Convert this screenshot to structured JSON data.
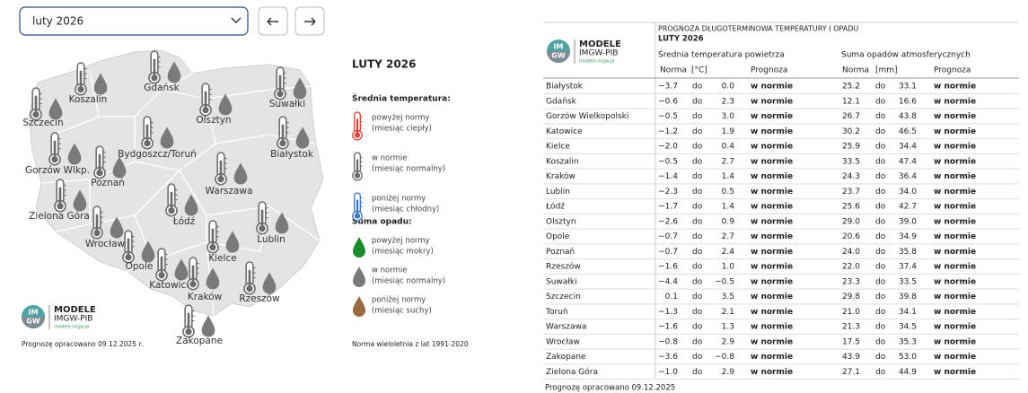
{
  "controls": {
    "month_select": "luty 2026"
  },
  "map": {
    "cities": [
      "Koszalin",
      "Gdańsk",
      "Suwałki",
      "Szczecin",
      "Olsztyn",
      "Bydgoszcz/Toruń",
      "Białystok",
      "Gorzów Wlkp.",
      "Poznań",
      "Warszawa",
      "Zielona Góra",
      "Łódź",
      "Lublin",
      "Wrocław",
      "Opole",
      "Kielce",
      "Katowice",
      "Kraków",
      "Rzeszów",
      "Zakopane"
    ],
    "logo": {
      "mark_top": "IM",
      "mark_bottom": "GW",
      "title": "MODELE",
      "subtitle": "IMGW-PIB",
      "url": "modele.imgw.pl"
    },
    "footnote": "Prognozę opracowano 09.12.2025 r."
  },
  "legend": {
    "title": "LUTY 2026",
    "temperature": {
      "heading": "Średnia temperatura:",
      "items": [
        [
          "powyżej normy",
          "(miesiąc ciepły)"
        ],
        [
          "w normie",
          "(miesiąc normalny)"
        ],
        [
          "poniżej normy",
          "(miesiąc chłodny)"
        ]
      ]
    },
    "precipitation": {
      "heading": "Suma opadu:",
      "items": [
        [
          "powyżej normy",
          "(miesiąc mokry)"
        ],
        [
          "w normie",
          "(miesiąc normalny)"
        ],
        [
          "poniżej normy",
          "(miesiąc suchy)"
        ]
      ]
    },
    "note": "Norma wieloletnia z lat 1991-2020"
  },
  "table": {
    "title": "PROGNOZA DŁUGOTERMINOWA TEMPERATURY I OPADU",
    "subtitle": "LUTY 2026",
    "groups": [
      "Średnia temperatura powietrza",
      "Suma opadów atmosferycznych"
    ],
    "columns": [
      "Norma",
      "[°C]",
      "Prognoza",
      "Norma",
      "[mm]",
      "Prognoza"
    ],
    "rows": [
      [
        "Białystok",
        "−3.7",
        "do",
        "0.0",
        "w normie",
        "25.2",
        "do",
        "33.1",
        "w normie"
      ],
      [
        "Gdańsk",
        "−0.6",
        "do",
        "2.3",
        "w normie",
        "12.1",
        "do",
        "16.6",
        "w normie"
      ],
      [
        "Gorzów Wielkopolski",
        "−0.5",
        "do",
        "3.0",
        "w normie",
        "26.7",
        "do",
        "43.8",
        "w normie"
      ],
      [
        "Katowice",
        "−1.2",
        "do",
        "1.9",
        "w normie",
        "30.2",
        "do",
        "46.5",
        "w normie"
      ],
      [
        "Kielce",
        "−2.0",
        "do",
        "0.4",
        "w normie",
        "25.9",
        "do",
        "34.4",
        "w normie"
      ],
      [
        "Koszalin",
        "−0.5",
        "do",
        "2.7",
        "w normie",
        "33.5",
        "do",
        "47.4",
        "w normie"
      ],
      [
        "Kraków",
        "−1.4",
        "do",
        "1.4",
        "w normie",
        "24.3",
        "do",
        "36.4",
        "w normie"
      ],
      [
        "Lublin",
        "−2.3",
        "do",
        "0.5",
        "w normie",
        "23.7",
        "do",
        "34.0",
        "w normie"
      ],
      [
        "Łódź",
        "−1.7",
        "do",
        "1.4",
        "w normie",
        "25.6",
        "do",
        "42.7",
        "w normie"
      ],
      [
        "Olsztyn",
        "−2.6",
        "do",
        "0.9",
        "w normie",
        "29.0",
        "do",
        "39.0",
        "w normie"
      ],
      [
        "Opole",
        "−0.7",
        "do",
        "2.7",
        "w normie",
        "20.6",
        "do",
        "34.9",
        "w normie"
      ],
      [
        "Poznań",
        "−0.7",
        "do",
        "2.4",
        "w normie",
        "24.0",
        "do",
        "35.8",
        "w normie"
      ],
      [
        "Rzeszów",
        "−1.6",
        "do",
        "1.0",
        "w normie",
        "22.0",
        "do",
        "37.4",
        "w normie"
      ],
      [
        "Suwałki",
        "−4.4",
        "do",
        "−0.5",
        "w normie",
        "23.3",
        "do",
        "33.5",
        "w normie"
      ],
      [
        "Szczecin",
        "0.1",
        "do",
        "3.5",
        "w normie",
        "29.8",
        "do",
        "39.8",
        "w normie"
      ],
      [
        "Toruń",
        "−1.3",
        "do",
        "2.1",
        "w normie",
        "21.0",
        "do",
        "34.1",
        "w normie"
      ],
      [
        "Warszawa",
        "−1.6",
        "do",
        "1.3",
        "w normie",
        "21.3",
        "do",
        "34.5",
        "w normie"
      ],
      [
        "Wrocław",
        "−0.8",
        "do",
        "2.9",
        "w normie",
        "17.5",
        "do",
        "35.3",
        "w normie"
      ],
      [
        "Zakopane",
        "−3.6",
        "do",
        "−0.8",
        "w normie",
        "43.9",
        "do",
        "53.0",
        "w normie"
      ],
      [
        "Zielona Góra",
        "−1.0",
        "do",
        "2.9",
        "w normie",
        "27.1",
        "do",
        "44.9",
        "w normie"
      ]
    ],
    "footnote": "Prognozę opracowano 09.12.2025"
  }
}
